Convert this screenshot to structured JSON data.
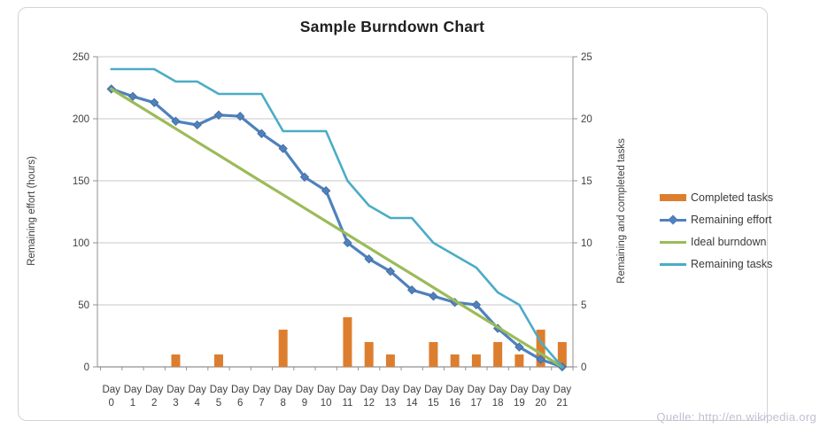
{
  "title": "Sample Burndown Chart",
  "source_note": "Quelle: http://en.wikipedia.org",
  "colors": {
    "bar_orange": "#DD7E2E",
    "effort_blue": "#4F81BD",
    "ideal_green": "#9BBB59",
    "tasks_teal": "#4BACC6",
    "gridline": "#c9c9c9",
    "axis": "#919191",
    "tick_text": "#3f3f3f",
    "title_text": "#1f1f1f",
    "watermark_text": "#c0c0d4"
  },
  "chart_data": {
    "type": "combo",
    "title": "Sample Burndown Chart",
    "grid": true,
    "legend_position": "right",
    "categories": [
      "Day 0",
      "Day 1",
      "Day 2",
      "Day 3",
      "Day 4",
      "Day 5",
      "Day 6",
      "Day 7",
      "Day 8",
      "Day 9",
      "Day 10",
      "Day 11",
      "Day 12",
      "Day 13",
      "Day 14",
      "Day 15",
      "Day 16",
      "Day 17",
      "Day 18",
      "Day 19",
      "Day 20",
      "Day 21"
    ],
    "x_label_word": "Day",
    "x_label_numbers": [
      "0",
      "1",
      "2",
      "3",
      "4",
      "5",
      "6",
      "7",
      "8",
      "9",
      "10",
      "11",
      "12",
      "13",
      "14",
      "15",
      "16",
      "17",
      "18",
      "19",
      "20",
      "21"
    ],
    "left_axis": {
      "label": "Remaining effort (hours)",
      "min": 0,
      "max": 250,
      "step": 50,
      "ticks": [
        250,
        200,
        150,
        100,
        50,
        0
      ]
    },
    "right_axis": {
      "label": "Remaining and completed tasks",
      "min": 0,
      "max": 25,
      "step": 5,
      "ticks": [
        25,
        20,
        15,
        10,
        5,
        0
      ]
    },
    "series": [
      {
        "name": "Completed tasks",
        "type": "bar",
        "axis": "right",
        "color": "#DD7E2E",
        "values": [
          0,
          0,
          0,
          1,
          0,
          1,
          0,
          0,
          3,
          0,
          0,
          4,
          2,
          1,
          0,
          2,
          1,
          1,
          2,
          1,
          3,
          2
        ]
      },
      {
        "name": "Remaining effort",
        "type": "line",
        "marker": "diamond",
        "axis": "left",
        "color": "#4F81BD",
        "values": [
          224,
          218,
          213,
          198,
          195,
          203,
          202,
          188,
          176,
          153,
          142,
          100,
          87,
          77,
          62,
          57,
          52,
          50,
          31,
          16,
          6,
          0
        ]
      },
      {
        "name": "Ideal burndown",
        "type": "line",
        "axis": "left",
        "color": "#9BBB59",
        "values": [
          224,
          213.3,
          202.7,
          192,
          181.3,
          170.7,
          160,
          149.3,
          138.7,
          128,
          117.3,
          106.7,
          96,
          85.3,
          74.7,
          64,
          53.3,
          42.7,
          32,
          21.3,
          10.7,
          0
        ]
      },
      {
        "name": "Remaining tasks",
        "type": "line",
        "axis": "right",
        "color": "#4BACC6",
        "values": [
          24,
          24,
          24,
          23,
          23,
          22,
          22,
          22,
          19,
          19,
          19,
          15,
          13,
          12,
          12,
          10,
          9,
          8,
          6,
          5,
          2,
          0
        ]
      }
    ]
  }
}
